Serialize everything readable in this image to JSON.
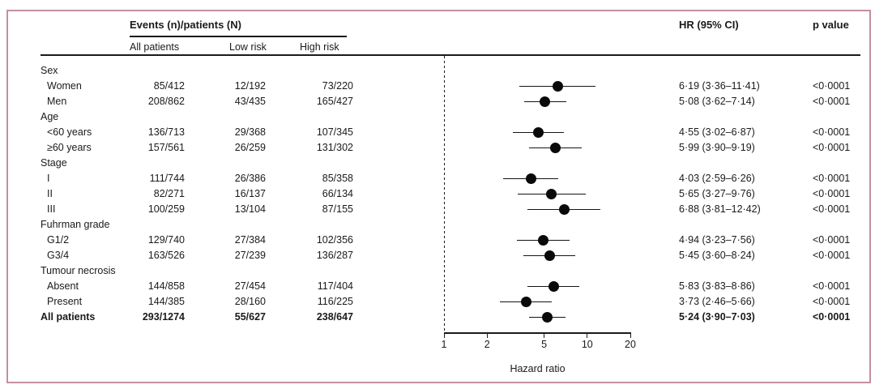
{
  "frame": {
    "border_color": "#c28fa4"
  },
  "header": {
    "events_title": "Events (n)/patients (N)",
    "col_all": "All patients",
    "col_low": "Low risk",
    "col_high": "High risk",
    "hr_title": "HR (95% CI)",
    "p_title": "p value"
  },
  "axis": {
    "label": "Hazard ratio",
    "ticks": [
      1,
      2,
      5,
      10,
      20
    ],
    "min": 1,
    "max": 20,
    "scale": "log"
  },
  "rows": [
    {
      "type": "group",
      "label": "Sex"
    },
    {
      "type": "item",
      "label": "Women",
      "all": "85/412",
      "low": "12/192",
      "high": "73/220",
      "hr_text": "6·19 (3·36–11·41)",
      "p": "<0·0001",
      "hr": 6.19,
      "lo": 3.36,
      "hi": 11.41
    },
    {
      "type": "item",
      "label": "Men",
      "all": "208/862",
      "low": "43/435",
      "high": "165/427",
      "hr_text": "5·08 (3·62–7·14)",
      "p": "<0·0001",
      "hr": 5.08,
      "lo": 3.62,
      "hi": 7.14
    },
    {
      "type": "group",
      "label": "Age"
    },
    {
      "type": "item",
      "label": "<60 years",
      "all": "136/713",
      "low": "29/368",
      "high": "107/345",
      "hr_text": "4·55 (3·02–6·87)",
      "p": "<0·0001",
      "hr": 4.55,
      "lo": 3.02,
      "hi": 6.87
    },
    {
      "type": "item",
      "label": "≥60 years",
      "all": "157/561",
      "low": "26/259",
      "high": "131/302",
      "hr_text": "5·99 (3·90–9·19)",
      "p": "<0·0001",
      "hr": 5.99,
      "lo": 3.9,
      "hi": 9.19
    },
    {
      "type": "group",
      "label": "Stage"
    },
    {
      "type": "item",
      "label": "I",
      "all": "111/744",
      "low": "26/386",
      "high": "85/358",
      "hr_text": "4·03 (2·59–6·26)",
      "p": "<0·0001",
      "hr": 4.03,
      "lo": 2.59,
      "hi": 6.26
    },
    {
      "type": "item",
      "label": "II",
      "all": "82/271",
      "low": "16/137",
      "high": "66/134",
      "hr_text": "5·65 (3·27–9·76)",
      "p": "<0·0001",
      "hr": 5.65,
      "lo": 3.27,
      "hi": 9.76
    },
    {
      "type": "item",
      "label": "III",
      "all": "100/259",
      "low": "13/104",
      "high": "87/155",
      "hr_text": "6·88 (3·81–12·42)",
      "p": "<0·0001",
      "hr": 6.88,
      "lo": 3.81,
      "hi": 12.42
    },
    {
      "type": "group",
      "label": "Fuhrman grade"
    },
    {
      "type": "item",
      "label": "G1/2",
      "all": "129/740",
      "low": "27/384",
      "high": "102/356",
      "hr_text": "4·94 (3·23–7·56)",
      "p": "<0·0001",
      "hr": 4.94,
      "lo": 3.23,
      "hi": 7.56
    },
    {
      "type": "item",
      "label": "G3/4",
      "all": "163/526",
      "low": "27/239",
      "high": "136/287",
      "hr_text": "5·45 (3·60–8·24)",
      "p": "<0·0001",
      "hr": 5.45,
      "lo": 3.6,
      "hi": 8.24
    },
    {
      "type": "group",
      "label": "Tumour necrosis"
    },
    {
      "type": "item",
      "label": "Absent",
      "all": "144/858",
      "low": "27/454",
      "high": "117/404",
      "hr_text": "5·83 (3·83–8·86)",
      "p": "<0·0001",
      "hr": 5.83,
      "lo": 3.83,
      "hi": 8.86
    },
    {
      "type": "item",
      "label": "Present",
      "all": "144/385",
      "low": "28/160",
      "high": "116/225",
      "hr_text": "3·73 (2·46–5·66)",
      "p": "<0·0001",
      "hr": 3.73,
      "lo": 2.46,
      "hi": 5.66
    },
    {
      "type": "total",
      "label": "All patients",
      "all": "293/1274",
      "low": "55/627",
      "high": "238/647",
      "hr_text": "5·24 (3·90–7·03)",
      "p": "<0·0001",
      "hr": 5.24,
      "lo": 3.9,
      "hi": 7.03
    }
  ],
  "chart_data": {
    "type": "scatter",
    "subtype": "forest-plot",
    "title": "",
    "xlabel": "Hazard ratio",
    "x_scale": "log",
    "x_ticks": [
      1,
      2,
      5,
      10,
      20
    ],
    "xlim": [
      1,
      20
    ],
    "reference_line": 1,
    "groups": [
      "Sex",
      "Age",
      "Stage",
      "Fuhrman grade",
      "Tumour necrosis"
    ],
    "categories": [
      "Women",
      "Men",
      "<60 years",
      "≥60 years",
      "I",
      "II",
      "III",
      "G1/2",
      "G3/4",
      "Absent",
      "Present",
      "All patients"
    ],
    "series": [
      {
        "name": "Hazard ratio",
        "values": [
          6.19,
          5.08,
          4.55,
          5.99,
          4.03,
          5.65,
          6.88,
          4.94,
          5.45,
          5.83,
          3.73,
          5.24
        ]
      },
      {
        "name": "CI lower (95%)",
        "values": [
          3.36,
          3.62,
          3.02,
          3.9,
          2.59,
          3.27,
          3.81,
          3.23,
          3.6,
          3.83,
          2.46,
          3.9
        ]
      },
      {
        "name": "CI upper (95%)",
        "values": [
          11.41,
          7.14,
          6.87,
          9.19,
          6.26,
          9.76,
          12.42,
          7.56,
          8.24,
          8.86,
          5.66,
          7.03
        ]
      }
    ],
    "p_values": [
      "<0·0001",
      "<0·0001",
      "<0·0001",
      "<0·0001",
      "<0·0001",
      "<0·0001",
      "<0·0001",
      "<0·0001",
      "<0·0001",
      "<0·0001",
      "<0·0001",
      "<0·0001"
    ]
  }
}
